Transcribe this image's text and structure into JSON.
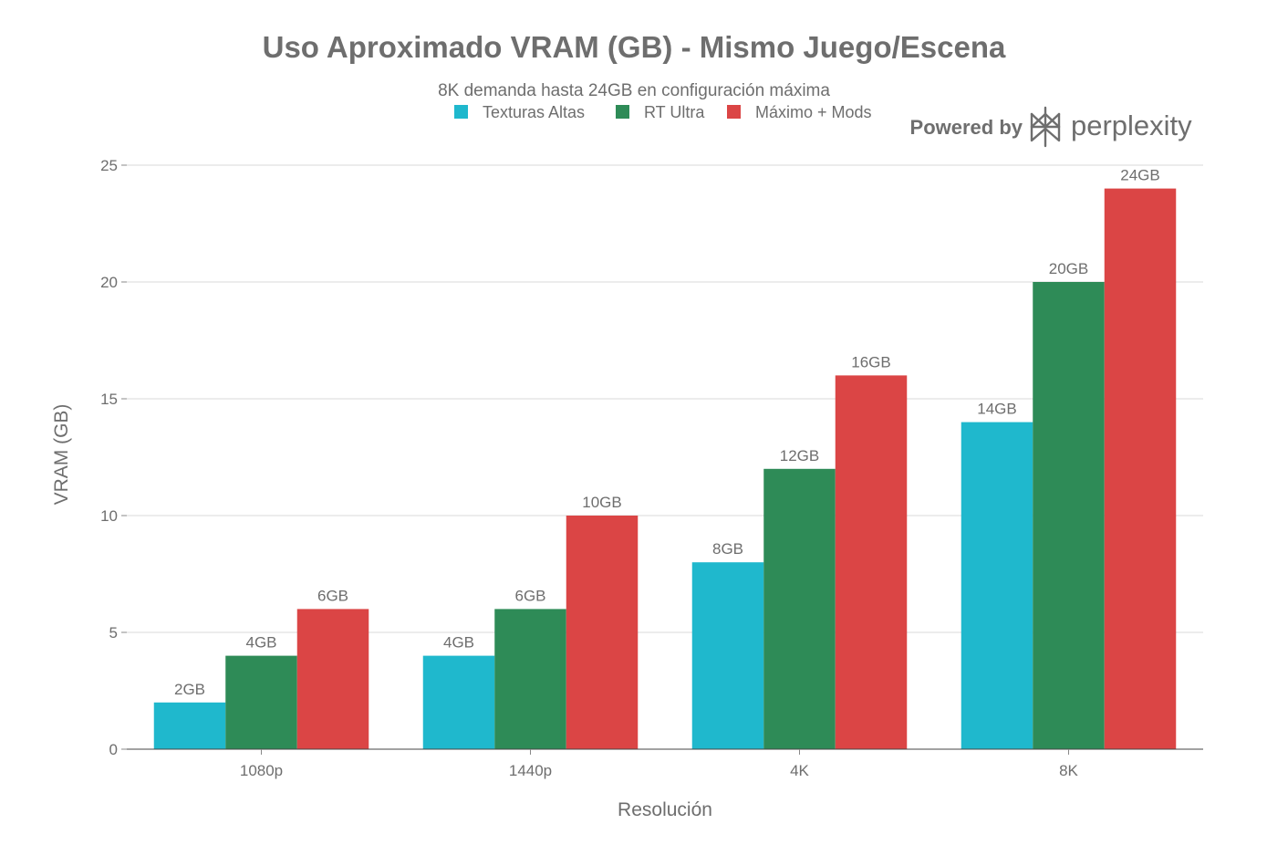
{
  "branding": {
    "powered_by": "Powered by",
    "name": "perplexity",
    "logo_icon": "perplexity-logo-icon"
  },
  "chart_data": {
    "type": "bar",
    "title": "Uso Aproximado VRAM (GB) - Mismo Juego/Escena",
    "subtitle": "8K demanda hasta 24GB en configuración máxima",
    "xlabel": "Resolución",
    "ylabel": "VRAM (GB)",
    "ylim": [
      0,
      25
    ],
    "yticks": [
      0,
      5,
      10,
      15,
      20,
      25
    ],
    "grid": true,
    "legend_position": "top-center",
    "categories": [
      "1080p",
      "1440p",
      "4K",
      "8K"
    ],
    "series": [
      {
        "name": "Texturas Altas",
        "color": "#1fb8cd",
        "values": [
          2,
          4,
          8,
          14
        ],
        "labels": [
          "2GB",
          "4GB",
          "8GB",
          "14GB"
        ]
      },
      {
        "name": "RT Ultra",
        "color": "#2e8b57",
        "values": [
          4,
          6,
          12,
          20
        ],
        "labels": [
          "4GB",
          "6GB",
          "12GB",
          "20GB"
        ]
      },
      {
        "name": "Máximo + Mods",
        "color": "#db4545",
        "values": [
          6,
          10,
          16,
          24
        ],
        "labels": [
          "6GB",
          "10GB",
          "16GB",
          "24GB"
        ]
      }
    ]
  }
}
